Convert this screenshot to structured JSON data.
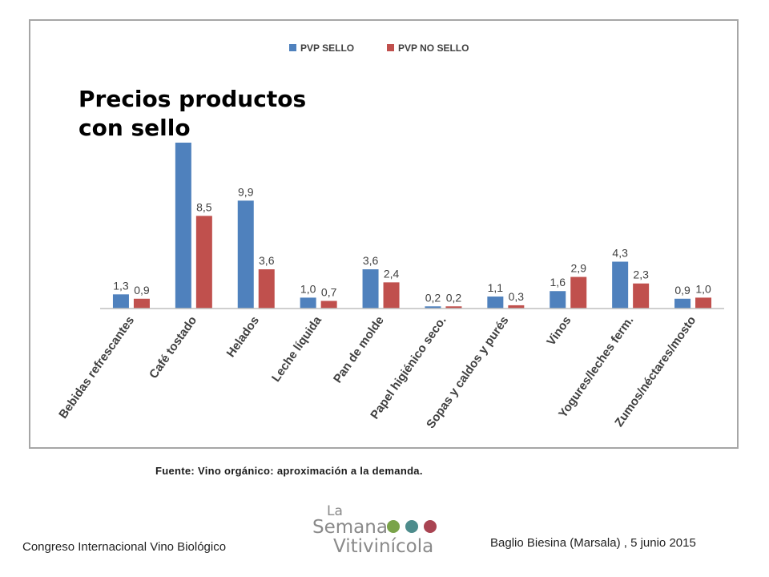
{
  "title": {
    "line1": "Precios productos",
    "line2": "con sello"
  },
  "source": "Fuente: Vino orgánico: aproximación a la demanda.",
  "footer": {
    "left": "Congreso Internacional Vino Biológico",
    "right": "Baglio Biesina (Marsala) ,  5 junio 2015"
  },
  "logo": {
    "line1": "La",
    "line2": "Semana",
    "line3": "Vitivinícola"
  },
  "colors": {
    "sello": "#4f81bd",
    "no_sello": "#c0504d",
    "frame": "#a6a6a6",
    "logo_grey": "#8a8a8a",
    "logo_green": "#7aa34a",
    "logo_teal": "#4d8c8c",
    "logo_red": "#a94452"
  },
  "chart_data": {
    "type": "bar",
    "categories": [
      "Bebidas refrescantes",
      "Café tostado",
      "Helados",
      "Leche líquida",
      "Pan de molde",
      "Papel higiénico seco.",
      "Sopas y caldos y purés",
      "Vinos",
      "Yogures/leches ferm.",
      "Zumos/néctares/mosto"
    ],
    "series": [
      {
        "name": "PVP SELLO",
        "values": [
          1.3,
          17.0,
          9.9,
          1.0,
          3.6,
          0.2,
          1.1,
          1.6,
          4.3,
          0.9
        ],
        "labels": [
          "1,3",
          "",
          "9,9",
          "1,0",
          "3,6",
          "0,2",
          "1,1",
          "1,6",
          "4,3",
          "0,9"
        ]
      },
      {
        "name": "PVP NO SELLO",
        "values": [
          0.9,
          8.5,
          3.6,
          0.7,
          2.4,
          0.2,
          0.3,
          2.9,
          2.3,
          1.0
        ],
        "labels": [
          "0,9",
          "8,5",
          "3,6",
          "0,7",
          "2,4",
          "0,2",
          "0,3",
          "2,9",
          "2,3",
          "1,0"
        ]
      }
    ],
    "legend_position": "top-center",
    "grid": false,
    "ylim": [
      0,
      17.5
    ]
  }
}
